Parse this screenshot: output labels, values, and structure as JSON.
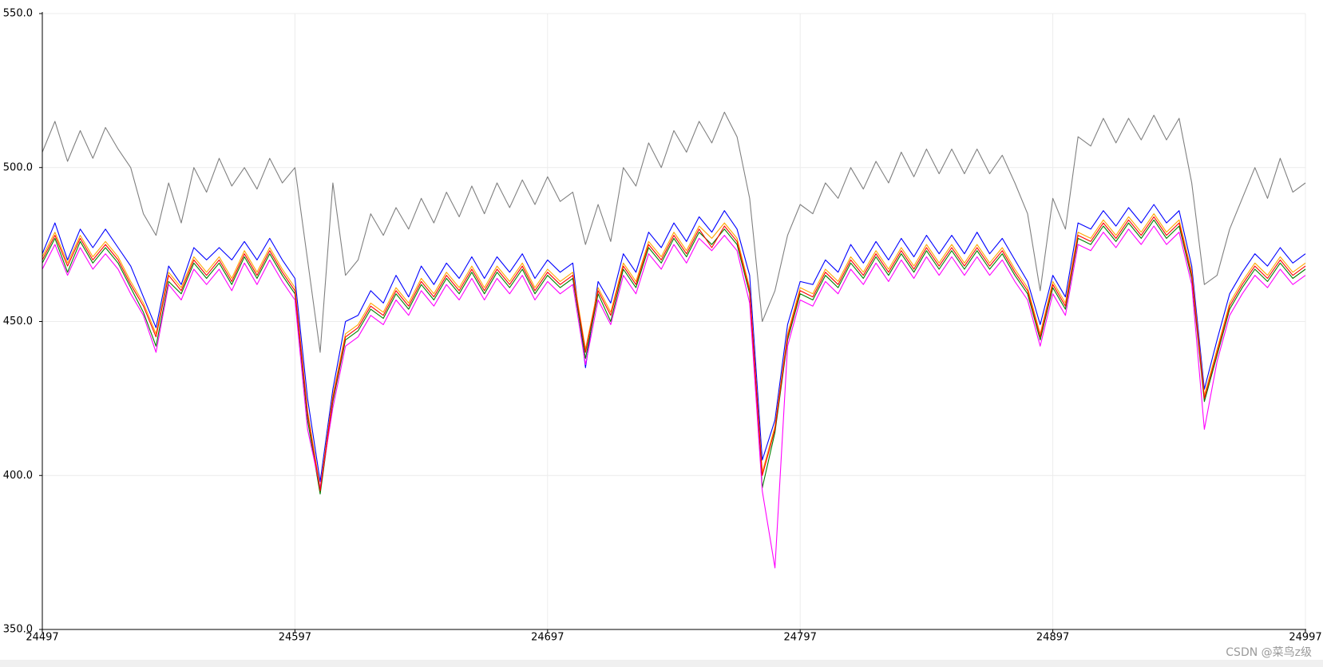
{
  "chart_data": {
    "type": "line",
    "x": [
      24497,
      24502,
      24507,
      24512,
      24517,
      24522,
      24527,
      24532,
      24537,
      24542,
      24547,
      24552,
      24557,
      24562,
      24567,
      24572,
      24577,
      24582,
      24587,
      24592,
      24597,
      24602,
      24607,
      24612,
      24617,
      24622,
      24627,
      24632,
      24637,
      24642,
      24647,
      24652,
      24657,
      24662,
      24667,
      24672,
      24677,
      24682,
      24687,
      24692,
      24697,
      24702,
      24707,
      24712,
      24717,
      24722,
      24727,
      24732,
      24737,
      24742,
      24747,
      24752,
      24757,
      24762,
      24767,
      24772,
      24777,
      24782,
      24787,
      24792,
      24797,
      24802,
      24807,
      24812,
      24817,
      24822,
      24827,
      24832,
      24837,
      24842,
      24847,
      24852,
      24857,
      24862,
      24867,
      24872,
      24877,
      24882,
      24887,
      24892,
      24897,
      24902,
      24907,
      24912,
      24917,
      24922,
      24927,
      24932,
      24937,
      24942,
      24947,
      24952,
      24957,
      24962,
      24967,
      24972,
      24977,
      24982,
      24987,
      24992,
      24997
    ],
    "series": [
      {
        "color": "#808080",
        "values": [
          505,
          515,
          502,
          512,
          503,
          513,
          506,
          500,
          485,
          478,
          495,
          482,
          500,
          492,
          503,
          494,
          500,
          493,
          503,
          495,
          500,
          470,
          440,
          495,
          465,
          470,
          485,
          478,
          487,
          480,
          490,
          482,
          492,
          484,
          494,
          485,
          495,
          487,
          496,
          488,
          497,
          489,
          492,
          475,
          488,
          476,
          500,
          494,
          508,
          500,
          512,
          505,
          515,
          508,
          518,
          510,
          490,
          450,
          460,
          478,
          488,
          485,
          495,
          490,
          500,
          493,
          502,
          495,
          505,
          497,
          506,
          498,
          506,
          498,
          506,
          498,
          504,
          495,
          485,
          460,
          490,
          480,
          510,
          507,
          516,
          508,
          516,
          509,
          517,
          509,
          516,
          495,
          462,
          465,
          480,
          490,
          500,
          490,
          503,
          492,
          495
        ]
      },
      {
        "color": "#0000ff",
        "values": [
          472,
          482,
          470,
          480,
          474,
          480,
          474,
          468,
          458,
          448,
          468,
          462,
          474,
          470,
          474,
          470,
          476,
          470,
          477,
          470,
          464,
          425,
          398,
          428,
          450,
          452,
          460,
          456,
          465,
          458,
          468,
          462,
          469,
          464,
          471,
          464,
          471,
          466,
          472,
          464,
          470,
          466,
          469,
          435,
          463,
          456,
          472,
          466,
          479,
          474,
          482,
          476,
          484,
          479,
          486,
          480,
          465,
          405,
          418,
          449,
          463,
          462,
          470,
          466,
          475,
          469,
          476,
          470,
          477,
          471,
          478,
          472,
          478,
          472,
          479,
          472,
          477,
          470,
          463,
          449,
          465,
          458,
          482,
          480,
          486,
          481,
          487,
          482,
          488,
          482,
          486,
          468,
          428,
          444,
          459,
          466,
          472,
          468,
          474,
          469,
          472
        ]
      },
      {
        "color": "#008000",
        "values": [
          469,
          477,
          466,
          476,
          469,
          474,
          469,
          461,
          453,
          442,
          463,
          459,
          469,
          464,
          469,
          462,
          471,
          464,
          472,
          465,
          459,
          418,
          394,
          424,
          444,
          447,
          454,
          451,
          459,
          454,
          462,
          457,
          464,
          459,
          466,
          459,
          466,
          461,
          467,
          459,
          465,
          461,
          464,
          438,
          459,
          450,
          467,
          461,
          474,
          469,
          477,
          471,
          479,
          475,
          480,
          475,
          459,
          396,
          414,
          444,
          459,
          457,
          465,
          461,
          469,
          464,
          471,
          465,
          472,
          466,
          473,
          467,
          473,
          467,
          473,
          467,
          472,
          465,
          459,
          444,
          461,
          454,
          477,
          475,
          481,
          476,
          482,
          477,
          483,
          477,
          481,
          464,
          424,
          439,
          454,
          461,
          467,
          463,
          469,
          464,
          467
        ]
      },
      {
        "color": "#ffa500",
        "values": [
          471,
          479,
          469,
          478,
          471,
          476,
          471,
          463,
          456,
          446,
          466,
          461,
          471,
          466,
          471,
          464,
          473,
          466,
          474,
          467,
          461,
          421,
          396,
          426,
          446,
          449,
          456,
          453,
          461,
          456,
          464,
          459,
          466,
          461,
          468,
          461,
          468,
          463,
          469,
          461,
          467,
          463,
          466,
          441,
          461,
          453,
          469,
          463,
          476,
          471,
          479,
          473,
          481,
          477,
          482,
          477,
          461,
          401,
          416,
          446,
          461,
          459,
          467,
          463,
          471,
          466,
          473,
          467,
          474,
          468,
          475,
          469,
          475,
          469,
          475,
          469,
          474,
          467,
          461,
          446,
          463,
          456,
          479,
          477,
          483,
          478,
          484,
          479,
          485,
          479,
          483,
          466,
          426,
          441,
          456,
          463,
          469,
          465,
          471,
          466,
          469
        ]
      },
      {
        "color": "#ff00ff",
        "values": [
          467,
          475,
          465,
          474,
          467,
          472,
          467,
          459,
          452,
          440,
          462,
          457,
          467,
          462,
          467,
          460,
          469,
          462,
          470,
          463,
          457,
          415,
          396,
          422,
          442,
          445,
          452,
          449,
          457,
          452,
          460,
          455,
          462,
          457,
          464,
          457,
          464,
          459,
          465,
          457,
          463,
          459,
          462,
          436,
          457,
          449,
          465,
          459,
          472,
          467,
          475,
          469,
          477,
          473,
          478,
          473,
          456,
          395,
          370,
          442,
          457,
          455,
          463,
          459,
          467,
          462,
          469,
          463,
          470,
          464,
          471,
          465,
          471,
          465,
          471,
          465,
          470,
          463,
          457,
          442,
          459,
          452,
          475,
          473,
          479,
          474,
          480,
          475,
          481,
          475,
          479,
          462,
          415,
          437,
          452,
          459,
          465,
          461,
          467,
          462,
          465
        ]
      },
      {
        "color": "#ff0000",
        "values": [
          470,
          478,
          468,
          477,
          470,
          475,
          470,
          462,
          455,
          445,
          465,
          460,
          470,
          465,
          470,
          463,
          472,
          465,
          473,
          466,
          460,
          420,
          395,
          425,
          445,
          448,
          455,
          452,
          460,
          455,
          463,
          458,
          465,
          460,
          467,
          460,
          467,
          462,
          468,
          460,
          466,
          462,
          465,
          440,
          460,
          452,
          468,
          462,
          475,
          470,
          478,
          472,
          480,
          474,
          481,
          476,
          460,
          400,
          415,
          445,
          460,
          458,
          466,
          462,
          470,
          465,
          472,
          466,
          473,
          467,
          474,
          468,
          474,
          468,
          474,
          468,
          473,
          466,
          460,
          445,
          462,
          455,
          478,
          476,
          482,
          477,
          483,
          478,
          484,
          478,
          482,
          465,
          425,
          440,
          455,
          462,
          468,
          464,
          470,
          465,
          468
        ]
      }
    ],
    "xlim": [
      24497,
      24997
    ],
    "ylim": [
      350,
      550
    ],
    "xticks": [
      24497,
      24597,
      24697,
      24797,
      24897,
      24997
    ],
    "yticks": [
      {
        "value": 350,
        "label": "350.0"
      },
      {
        "value": 400,
        "label": "400.0"
      },
      {
        "value": 450,
        "label": "450.0"
      },
      {
        "value": 500,
        "label": "500.0"
      },
      {
        "value": 550,
        "label": "550.0"
      }
    ],
    "grid": true,
    "watermark": "CSDN @菜鸟z级"
  }
}
